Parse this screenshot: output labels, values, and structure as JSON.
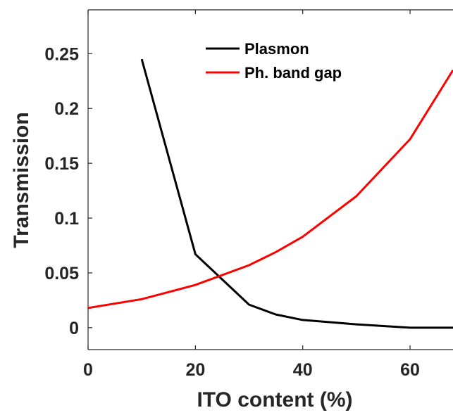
{
  "chart_data": {
    "type": "line",
    "xlabel": "ITO content (%)",
    "ylabel": "Transmission",
    "xlim": [
      0,
      68
    ],
    "ylim": [
      -0.02,
      0.29
    ],
    "x_ticks": [
      0,
      20,
      40,
      60
    ],
    "x_tick_labels": [
      "0",
      "20",
      "40",
      "60"
    ],
    "y_ticks": [
      0,
      0.05,
      0.1,
      0.15,
      0.2,
      0.25
    ],
    "y_tick_labels": [
      "0",
      "0.05",
      "0.1",
      "0.15",
      "0.2",
      "0.25"
    ],
    "grid": false,
    "legend_position": "top-center",
    "series": [
      {
        "name": "Plasmon",
        "color": "#000000",
        "x": [
          10,
          20,
          30,
          35,
          40,
          50,
          60,
          68
        ],
        "y": [
          0.245,
          0.067,
          0.021,
          0.012,
          0.007,
          0.003,
          0.0,
          0.0
        ]
      },
      {
        "name": "Ph. band gap",
        "color": "#ff0000",
        "x": [
          0,
          10,
          20,
          30,
          35,
          40,
          50,
          60,
          68
        ],
        "y": [
          0.018,
          0.026,
          0.039,
          0.057,
          0.069,
          0.083,
          0.12,
          0.172,
          0.235
        ]
      }
    ]
  }
}
